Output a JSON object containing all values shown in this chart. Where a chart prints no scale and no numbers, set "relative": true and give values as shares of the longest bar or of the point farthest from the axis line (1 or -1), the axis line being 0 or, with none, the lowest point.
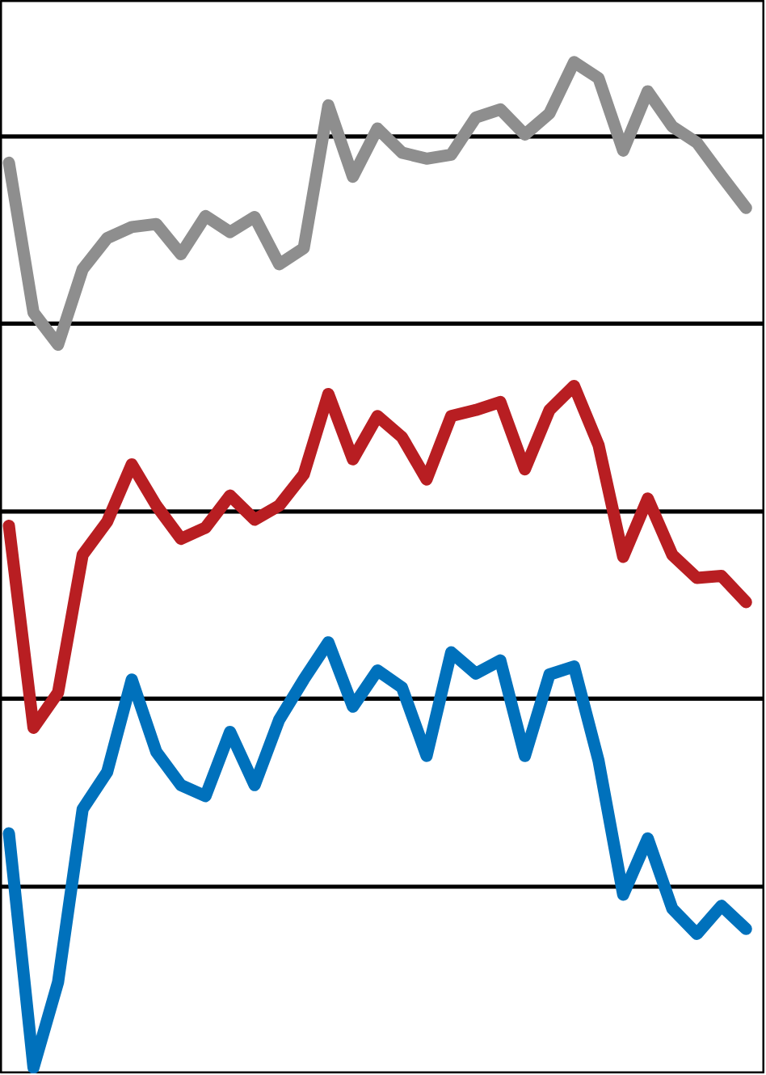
{
  "chart_data": {
    "type": "line",
    "relative": true,
    "categories": [
      null,
      null,
      null,
      null,
      null,
      null,
      null,
      null,
      null,
      null,
      null,
      null,
      null,
      null,
      null,
      null,
      null,
      null,
      null,
      null,
      null,
      null,
      null,
      null,
      null,
      null,
      null,
      null,
      null,
      null,
      null
    ],
    "series": [
      {
        "color": "#8e8e8e",
        "values": [
          0.9,
          0.751,
          0.719,
          0.794,
          0.825,
          0.836,
          0.839,
          0.809,
          0.847,
          0.831,
          0.846,
          0.799,
          0.815,
          0.957,
          0.886,
          0.934,
          0.91,
          0.904,
          0.908,
          0.945,
          0.953,
          0.928,
          0.949,
          1.0,
          0.984,
          0.912,
          0.971,
          0.936,
          0.92,
          0.887,
          0.855
        ]
      },
      {
        "color": "#b81e22",
        "values": [
          0.539,
          0.338,
          0.373,
          0.51,
          0.543,
          0.6,
          0.559,
          0.526,
          0.537,
          0.569,
          0.545,
          0.559,
          0.59,
          0.67,
          0.605,
          0.648,
          0.627,
          0.585,
          0.648,
          0.654,
          0.662,
          0.595,
          0.654,
          0.678,
          0.619,
          0.508,
          0.566,
          0.51,
          0.487,
          0.489,
          0.463
        ]
      },
      {
        "color": "#0071bc",
        "values": [
          0.233,
          0.0,
          0.085,
          0.257,
          0.294,
          0.386,
          0.314,
          0.281,
          0.27,
          0.334,
          0.281,
          0.346,
          0.386,
          0.423,
          0.359,
          0.395,
          0.378,
          0.31,
          0.413,
          0.392,
          0.405,
          0.31,
          0.391,
          0.399,
          0.305,
          0.172,
          0.228,
          0.158,
          0.133,
          0.161,
          0.138
        ]
      }
    ],
    "ref_lines": [
      {
        "axis": "y",
        "value": 0.926,
        "color": "#000000"
      },
      {
        "axis": "y",
        "value": 0.74,
        "color": "#000000"
      },
      {
        "axis": "y",
        "value": 0.553,
        "color": "#000000"
      },
      {
        "axis": "y",
        "value": 0.367,
        "color": "#000000"
      },
      {
        "axis": "y",
        "value": 0.18,
        "color": "#000000"
      }
    ],
    "tick_labels": false,
    "marker": "none",
    "line_style": "solid"
  }
}
